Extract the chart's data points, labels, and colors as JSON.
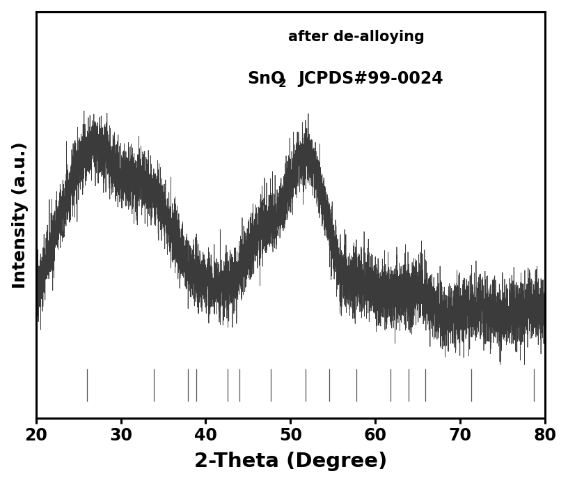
{
  "title_line1": "after de-alloying",
  "xlabel": "2-Theta (Degree)",
  "ylabel": "Intensity (a.u.)",
  "xlim": [
    20,
    80
  ],
  "ylim_min": -0.05,
  "ylim_max": 1.18,
  "background_color": "#ffffff",
  "tick_positions": [
    26.0,
    33.9,
    37.9,
    38.9,
    42.6,
    44.0,
    47.7,
    51.8,
    54.6,
    57.8,
    61.8,
    63.9,
    65.9,
    71.3,
    78.7
  ],
  "noise_seed": 42,
  "line_color": "#2a2a2a",
  "tick_line_color": "#555555"
}
